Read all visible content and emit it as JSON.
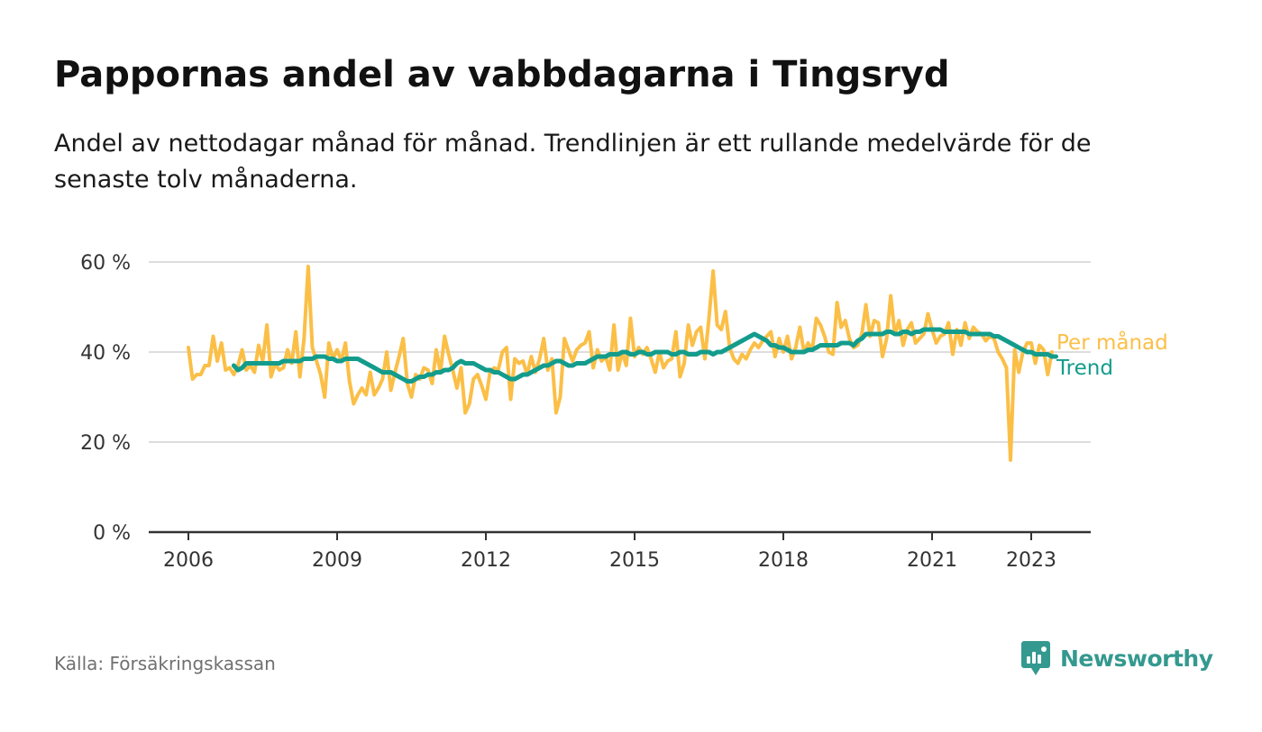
{
  "header": {
    "title": "Pappornas andel av vabbdagarna i Tingsryd",
    "subtitle": "Andel av nettodagar månad för månad. Trendlinjen är ett rullande medelvärde för de senaste tolv månaderna."
  },
  "footer": {
    "source": "Källa: Försäkringskassan",
    "brand": "Newsworthy"
  },
  "colors": {
    "monthly": "#fbbf47",
    "trend": "#139c8c",
    "brand": "#34998f",
    "grid": "#dddddd",
    "axis": "#333333"
  },
  "chart_data": {
    "type": "line",
    "x_unit": "year (decimal)",
    "xlim": [
      2005.2,
      2024.2
    ],
    "ylim": [
      0,
      60
    ],
    "y_ticks": [
      0,
      20,
      40,
      60
    ],
    "y_tick_labels": [
      "0 %",
      "20 %",
      "40 %",
      "60 %"
    ],
    "x_ticks": [
      2006,
      2009,
      2012,
      2015,
      2018,
      2021,
      2023
    ],
    "x_tick_labels": [
      "2006",
      "2009",
      "2012",
      "2015",
      "2018",
      "2021",
      "2023"
    ],
    "grid": "horizontal",
    "legend": "inline labels at line ends (right)",
    "series": [
      {
        "name": "Per månad",
        "start": 2006.0,
        "step": 0.08333,
        "values": [
          41,
          34,
          35,
          35,
          37,
          37,
          43.5,
          38,
          42,
          36,
          36.5,
          35,
          37,
          40.5,
          36,
          37,
          35.5,
          41.5,
          38,
          46,
          34.5,
          37.5,
          36,
          36.5,
          40.5,
          37.5,
          44.5,
          34.5,
          43,
          59,
          41,
          38,
          35,
          30,
          42,
          38.5,
          40.5,
          38,
          42,
          33.5,
          28.5,
          30.5,
          32,
          30.5,
          35.5,
          30.5,
          32,
          34,
          40,
          31.5,
          35.5,
          39,
          43,
          33,
          30,
          35,
          34,
          36.5,
          36,
          33,
          40.5,
          35.5,
          43.5,
          39.5,
          36,
          32,
          36.5,
          26.5,
          28.5,
          34,
          35,
          32.5,
          29.5,
          35.5,
          36.5,
          36,
          40,
          41,
          29.5,
          38.5,
          37.5,
          38,
          35,
          39,
          35.5,
          38.5,
          43,
          36,
          38.5,
          26.5,
          30,
          43,
          40.5,
          38,
          40.5,
          41.5,
          42,
          44.5,
          36.5,
          40.5,
          38,
          39,
          36,
          46,
          36,
          40,
          37,
          47.5,
          39,
          41,
          39.5,
          41,
          38.5,
          35.5,
          40,
          36.5,
          38,
          38.5,
          44.5,
          34.5,
          37.5,
          46,
          41.5,
          44.5,
          45.5,
          38.5,
          47.5,
          58,
          46,
          45,
          49,
          41,
          38.5,
          37.5,
          39.5,
          38.5,
          40.5,
          42,
          41,
          42.5,
          43.5,
          44.5,
          39,
          43,
          40,
          43.5,
          38.5,
          41,
          45.5,
          40,
          42,
          40.5,
          47.5,
          46,
          43.5,
          40,
          39.5,
          51,
          45.5,
          47,
          43,
          41,
          41.5,
          44,
          50.5,
          43.5,
          47,
          46.5,
          39,
          43,
          52.5,
          44,
          47,
          41.5,
          45,
          46.5,
          42,
          43,
          44,
          48.5,
          45,
          42,
          43.5,
          44,
          46.5,
          39.5,
          45,
          41.5,
          46.5,
          43,
          45.5,
          44.5,
          44,
          42.5,
          43.5,
          43,
          40,
          38.5,
          36.5,
          16,
          40.5,
          35.5,
          40,
          42,
          42,
          37.5,
          41.5,
          40.5,
          35,
          40
        ]
      },
      {
        "name": "Trend",
        "start": 2006.917,
        "step": 0.08333,
        "values": [
          37,
          36,
          36.5,
          37.5,
          37.5,
          37.5,
          37.5,
          37.5,
          37.5,
          37.5,
          37.5,
          37.5,
          38,
          38,
          38,
          38,
          38,
          38.5,
          38.5,
          38.5,
          39,
          39,
          39,
          38.5,
          38.5,
          38,
          38,
          38.5,
          38.5,
          38.5,
          38.5,
          38,
          37.5,
          37,
          36.5,
          36,
          35.5,
          35.5,
          35.5,
          35,
          34.5,
          34,
          33.5,
          33.5,
          34,
          34.5,
          34.5,
          35,
          35,
          35.5,
          35.5,
          36,
          36,
          36.5,
          37.5,
          38,
          37.5,
          37.5,
          37.5,
          37,
          36.5,
          36,
          36,
          35.5,
          35.5,
          35,
          34.5,
          34,
          34,
          34.5,
          35,
          35,
          35.5,
          36,
          36.5,
          37,
          37,
          37.5,
          38,
          38,
          37.5,
          37,
          37,
          37.5,
          37.5,
          37.5,
          38,
          38.5,
          39,
          39,
          39,
          39.5,
          39.5,
          39.5,
          40,
          40,
          39.5,
          39.5,
          40,
          40,
          39.5,
          39.5,
          40,
          40,
          40,
          40,
          39.5,
          39.5,
          40,
          40,
          39.5,
          39.5,
          39.5,
          40,
          40,
          40,
          39.5,
          40,
          40,
          40.5,
          41,
          41.5,
          42,
          42.5,
          43,
          43.5,
          44,
          43.5,
          43,
          42.5,
          41.5,
          41.5,
          41,
          41,
          40.5,
          40,
          40,
          40,
          40,
          40.5,
          40.5,
          41,
          41.5,
          41.5,
          41.5,
          41.5,
          41.5,
          42,
          42,
          42,
          41.5,
          42.5,
          43,
          44,
          44,
          44,
          44,
          44,
          44.5,
          44.5,
          44,
          44,
          44.5,
          44.5,
          44,
          44.5,
          44.5,
          45,
          45,
          45,
          45,
          45,
          44.5,
          44.5,
          44.5,
          44.5,
          44.5,
          44.5,
          44,
          44,
          44,
          44,
          44,
          44,
          43.5,
          43.5,
          43,
          42.5,
          42,
          41.5,
          41,
          40.5,
          40,
          40,
          39.5,
          39.5,
          39.5,
          39.5,
          39,
          39
        ]
      }
    ]
  }
}
